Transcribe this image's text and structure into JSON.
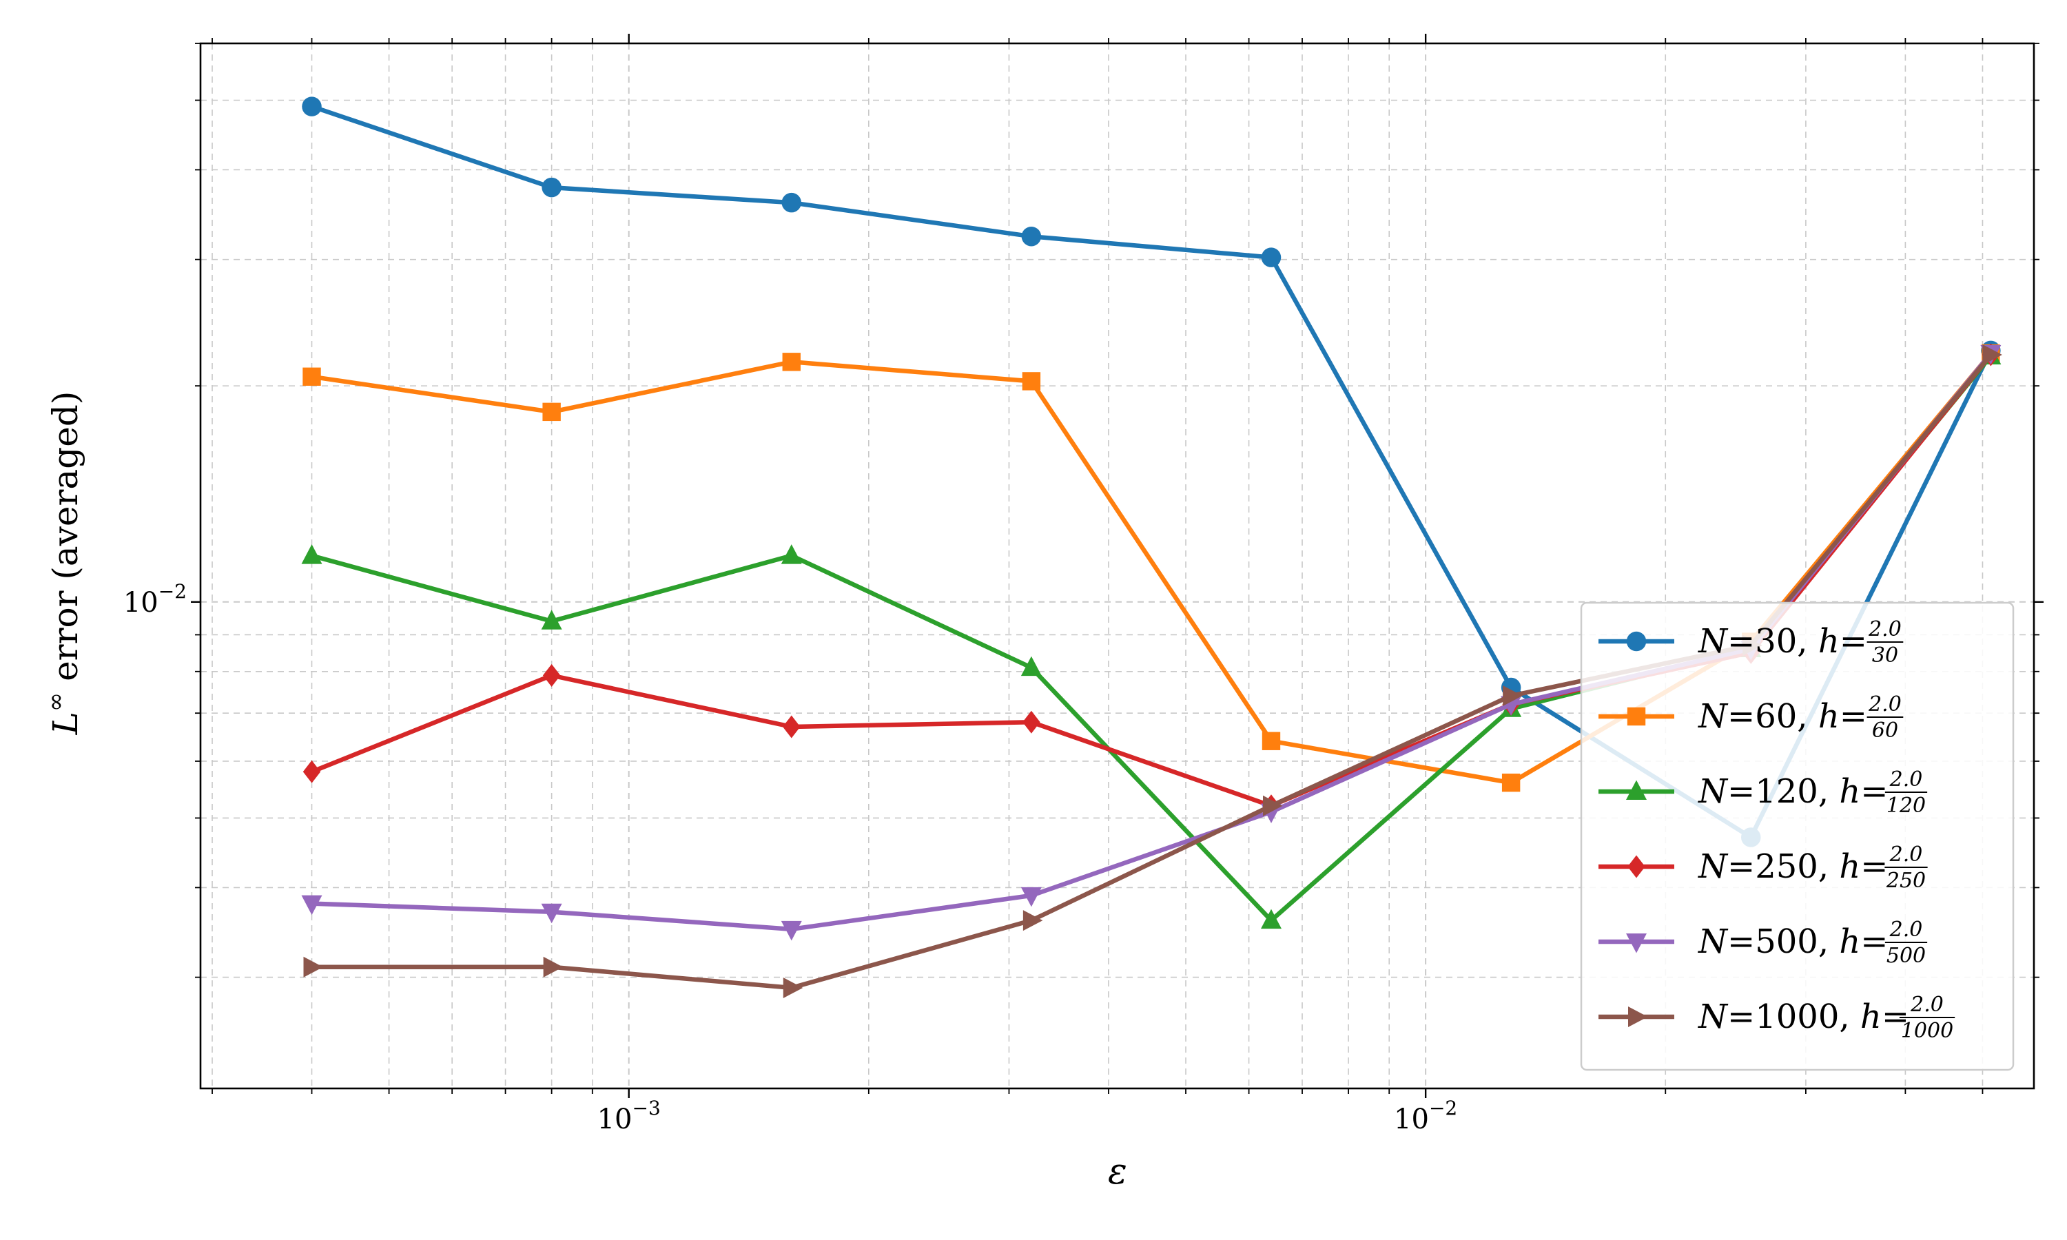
{
  "chart_data": {
    "type": "line",
    "xscale": "log",
    "yscale": "log",
    "grid": true,
    "grid_style": "dashed, major and minor",
    "legend_position": "right",
    "xlim": [
      0.00029,
      0.058
    ],
    "ylim": [
      0.0021,
      0.06
    ],
    "xlabel": "ε",
    "ylabel_base": "L",
    "ylabel_sup": "∞",
    "ylabel_rest": " error (averaged)",
    "xticks": [
      {
        "value": 0.001,
        "base": "10",
        "exp": "−3"
      },
      {
        "value": 0.01,
        "base": "10",
        "exp": "−2"
      }
    ],
    "yticks": [
      {
        "value": 0.01,
        "base": "10",
        "exp": "−2"
      }
    ],
    "x": [
      0.0004,
      0.0008,
      0.0016,
      0.0032,
      0.0064,
      0.0128,
      0.0256,
      0.0512
    ],
    "series": [
      {
        "name": "N=30",
        "N": "30",
        "h_num": "2.0",
        "h_den": "30",
        "color": "#1f77b4",
        "marker": "circle",
        "values": [
          0.049,
          0.0378,
          0.036,
          0.0323,
          0.0302,
          0.0076,
          0.0047,
          0.0224
        ]
      },
      {
        "name": "N=60",
        "N": "60",
        "h_num": "2.0",
        "h_den": "60",
        "color": "#ff7f0e",
        "marker": "square",
        "values": [
          0.0206,
          0.0184,
          0.0216,
          0.0203,
          0.0064,
          0.0056,
          0.0088,
          0.0222
        ]
      },
      {
        "name": "N=120",
        "N": "120",
        "h_num": "2.0",
        "h_den": "120",
        "color": "#2ca02c",
        "marker": "triangle-up",
        "values": [
          0.0116,
          0.0094,
          0.0116,
          0.0081,
          0.0036,
          0.0071,
          0.0086,
          0.022
        ]
      },
      {
        "name": "N=250",
        "N": "250",
        "h_num": "2.0",
        "h_den": "250",
        "color": "#d62728",
        "marker": "diamond",
        "values": [
          0.0058,
          0.0079,
          0.0067,
          0.0068,
          0.0052,
          0.0072,
          0.0085,
          0.0221
        ]
      },
      {
        "name": "N=500",
        "N": "500",
        "h_num": "2.0",
        "h_den": "500",
        "color": "#9467bd",
        "marker": "triangle-down",
        "values": [
          0.0038,
          0.0037,
          0.0035,
          0.0039,
          0.0051,
          0.0072,
          0.0086,
          0.0222
        ]
      },
      {
        "name": "N=1000",
        "N": "1000",
        "h_num": "2.0",
        "h_den": "1000",
        "color": "#8c564b",
        "marker": "triangle-right",
        "values": [
          0.0031,
          0.0031,
          0.0029,
          0.0036,
          0.0052,
          0.0074,
          0.0087,
          0.0221
        ]
      }
    ]
  }
}
